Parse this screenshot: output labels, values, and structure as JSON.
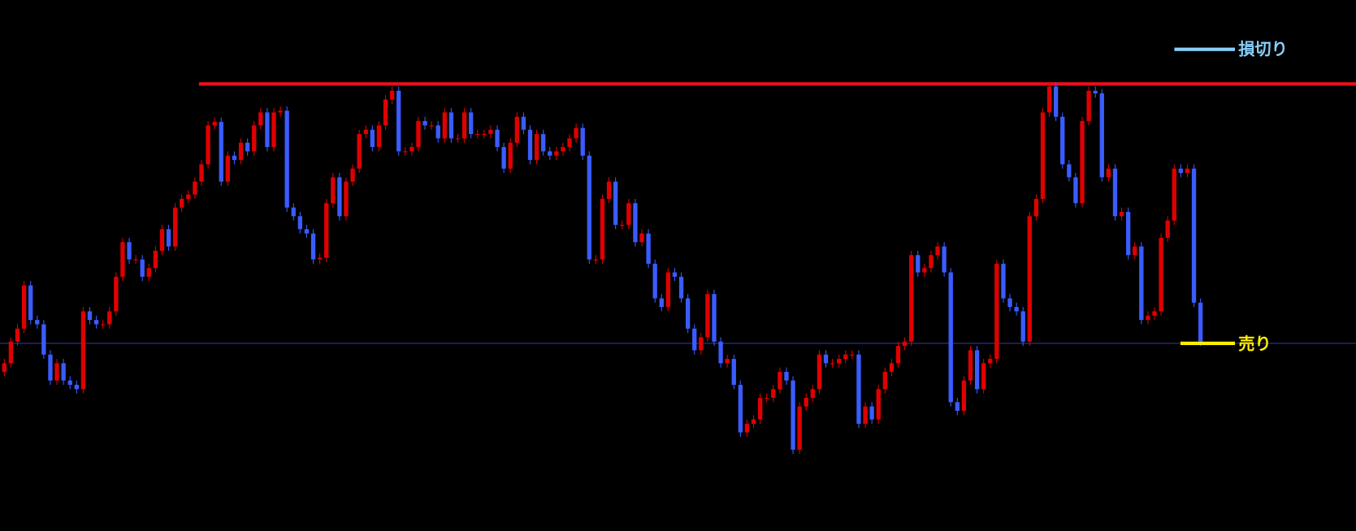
{
  "chart_data": {
    "type": "candlestick",
    "up_color": "#e00000",
    "down_color": "#3a5cff",
    "ylim": [
      0,
      614
    ],
    "open": [
      184,
      194,
      219,
      234,
      284,
      244,
      239,
      204,
      174,
      194,
      174,
      169,
      164,
      254,
      244,
      239,
      239,
      254,
      294,
      334,
      314,
      314,
      294,
      304,
      324,
      349,
      329,
      374,
      384,
      389,
      404,
      424,
      469,
      473,
      404,
      434,
      429,
      449,
      439,
      469,
      484,
      444,
      484,
      486,
      374,
      364,
      349,
      344,
      314,
      316,
      379,
      409,
      364,
      404,
      419,
      459,
      464,
      444,
      469,
      499,
      509,
      439,
      439,
      444,
      474,
      469,
      469,
      454,
      484,
      454,
      454,
      484,
      459,
      459,
      459,
      464,
      444,
      419,
      449,
      479,
      464,
      429,
      459,
      439,
      434,
      439,
      444,
      454,
      466,
      434,
      314,
      314,
      384,
      404,
      354,
      354,
      379,
      334,
      344,
      309,
      269,
      259,
      299,
      294,
      269,
      234,
      209,
      224,
      274,
      219,
      194,
      199,
      169,
      114,
      124,
      129,
      154,
      154,
      164,
      184,
      174,
      94,
      144,
      154,
      164,
      204,
      194,
      194,
      199,
      204,
      204,
      124,
      144,
      129,
      164,
      184,
      194,
      214,
      219,
      319,
      299,
      304,
      319,
      329,
      299,
      149,
      139,
      174,
      209,
      164,
      194,
      199,
      309,
      269,
      259,
      254,
      219,
      364,
      384,
      484,
      514,
      479,
      424,
      409,
      379,
      474,
      509,
      506,
      409,
      419,
      364,
      369,
      319,
      329,
      244,
      249,
      254,
      339,
      359,
      419,
      414,
      419,
      264
    ],
    "high": [
      199,
      224,
      239,
      289,
      289,
      249,
      244,
      209,
      199,
      199,
      179,
      174,
      259,
      259,
      249,
      244,
      259,
      299,
      339,
      339,
      319,
      319,
      309,
      329,
      354,
      354,
      379,
      389,
      394,
      409,
      429,
      474,
      478,
      478,
      439,
      439,
      454,
      454,
      474,
      489,
      489,
      489,
      491,
      491,
      379,
      369,
      354,
      349,
      321,
      384,
      414,
      414,
      409,
      424,
      464,
      469,
      469,
      474,
      504,
      514,
      514,
      444,
      449,
      479,
      479,
      474,
      474,
      489,
      489,
      459,
      489,
      489,
      464,
      464,
      469,
      469,
      449,
      454,
      484,
      484,
      469,
      464,
      464,
      444,
      444,
      449,
      459,
      471,
      471,
      439,
      319,
      389,
      409,
      409,
      359,
      384,
      384,
      349,
      349,
      314,
      274,
      304,
      304,
      299,
      274,
      239,
      229,
      279,
      279,
      224,
      204,
      204,
      174,
      129,
      134,
      159,
      159,
      169,
      189,
      189,
      179,
      149,
      159,
      169,
      209,
      209,
      199,
      204,
      209,
      209,
      209,
      149,
      149,
      169,
      189,
      199,
      219,
      224,
      324,
      324,
      309,
      324,
      334,
      334,
      304,
      154,
      179,
      214,
      214,
      199,
      204,
      314,
      314,
      274,
      264,
      259,
      369,
      389,
      489,
      519,
      519,
      484,
      429,
      414,
      479,
      514,
      514,
      511,
      424,
      424,
      374,
      374,
      334,
      334,
      254,
      259,
      344,
      364,
      424,
      424,
      424,
      424,
      269
    ],
    "low": [
      179,
      189,
      214,
      229,
      239,
      234,
      199,
      169,
      169,
      169,
      164,
      159,
      159,
      239,
      234,
      234,
      234,
      249,
      289,
      309,
      309,
      289,
      289,
      299,
      319,
      324,
      324,
      369,
      379,
      384,
      399,
      419,
      464,
      399,
      399,
      424,
      424,
      434,
      434,
      464,
      439,
      439,
      479,
      369,
      359,
      344,
      339,
      309,
      309,
      311,
      374,
      359,
      359,
      399,
      414,
      454,
      439,
      439,
      464,
      494,
      434,
      434,
      434,
      439,
      464,
      464,
      449,
      449,
      449,
      449,
      449,
      454,
      454,
      454,
      454,
      439,
      414,
      414,
      444,
      459,
      424,
      424,
      434,
      429,
      429,
      434,
      439,
      449,
      429,
      309,
      309,
      309,
      379,
      349,
      349,
      349,
      329,
      329,
      304,
      264,
      254,
      254,
      289,
      264,
      229,
      204,
      204,
      219,
      214,
      189,
      189,
      164,
      109,
      109,
      119,
      124,
      149,
      149,
      159,
      169,
      89,
      89,
      139,
      149,
      159,
      189,
      189,
      189,
      194,
      199,
      119,
      119,
      124,
      124,
      159,
      179,
      189,
      209,
      214,
      294,
      294,
      299,
      314,
      294,
      144,
      134,
      134,
      169,
      159,
      159,
      189,
      194,
      264,
      254,
      249,
      214,
      214,
      359,
      379,
      479,
      474,
      419,
      404,
      374,
      374,
      469,
      501,
      404,
      404,
      359,
      359,
      314,
      314,
      239,
      239,
      244,
      249,
      334,
      354,
      409,
      409,
      259,
      214
    ],
    "close": [
      194,
      219,
      234,
      284,
      244,
      239,
      204,
      174,
      194,
      174,
      169,
      164,
      254,
      244,
      239,
      239,
      254,
      294,
      334,
      314,
      314,
      294,
      304,
      324,
      349,
      329,
      374,
      384,
      389,
      404,
      424,
      469,
      473,
      404,
      434,
      429,
      449,
      439,
      469,
      484,
      444,
      484,
      486,
      374,
      364,
      349,
      344,
      314,
      316,
      379,
      409,
      364,
      404,
      419,
      459,
      464,
      444,
      469,
      499,
      509,
      439,
      439,
      444,
      474,
      469,
      469,
      454,
      484,
      454,
      454,
      484,
      459,
      459,
      459,
      464,
      444,
      419,
      449,
      479,
      464,
      429,
      459,
      439,
      434,
      439,
      444,
      454,
      466,
      434,
      314,
      314,
      384,
      404,
      354,
      354,
      379,
      334,
      344,
      309,
      269,
      259,
      299,
      294,
      269,
      234,
      209,
      224,
      274,
      219,
      194,
      199,
      169,
      114,
      124,
      129,
      154,
      154,
      164,
      184,
      174,
      94,
      144,
      154,
      164,
      204,
      194,
      194,
      199,
      204,
      204,
      124,
      144,
      129,
      164,
      184,
      194,
      214,
      219,
      319,
      299,
      304,
      319,
      329,
      299,
      149,
      139,
      174,
      209,
      164,
      194,
      199,
      309,
      269,
      259,
      254,
      219,
      364,
      384,
      484,
      514,
      479,
      424,
      409,
      379,
      474,
      509,
      506,
      409,
      419,
      364,
      369,
      319,
      329,
      244,
      249,
      254,
      339,
      359,
      419,
      414,
      419,
      264,
      219
    ],
    "hlines": [
      {
        "value": 517,
        "color": "#e8101a"
      },
      {
        "value": 217,
        "color": "#3a3ab0"
      }
    ],
    "legend": [
      {
        "name": "損切り",
        "color": "#87cefa"
      }
    ],
    "annotations": [
      {
        "text": "売り",
        "value": 217,
        "color": "#ffee00"
      }
    ]
  }
}
